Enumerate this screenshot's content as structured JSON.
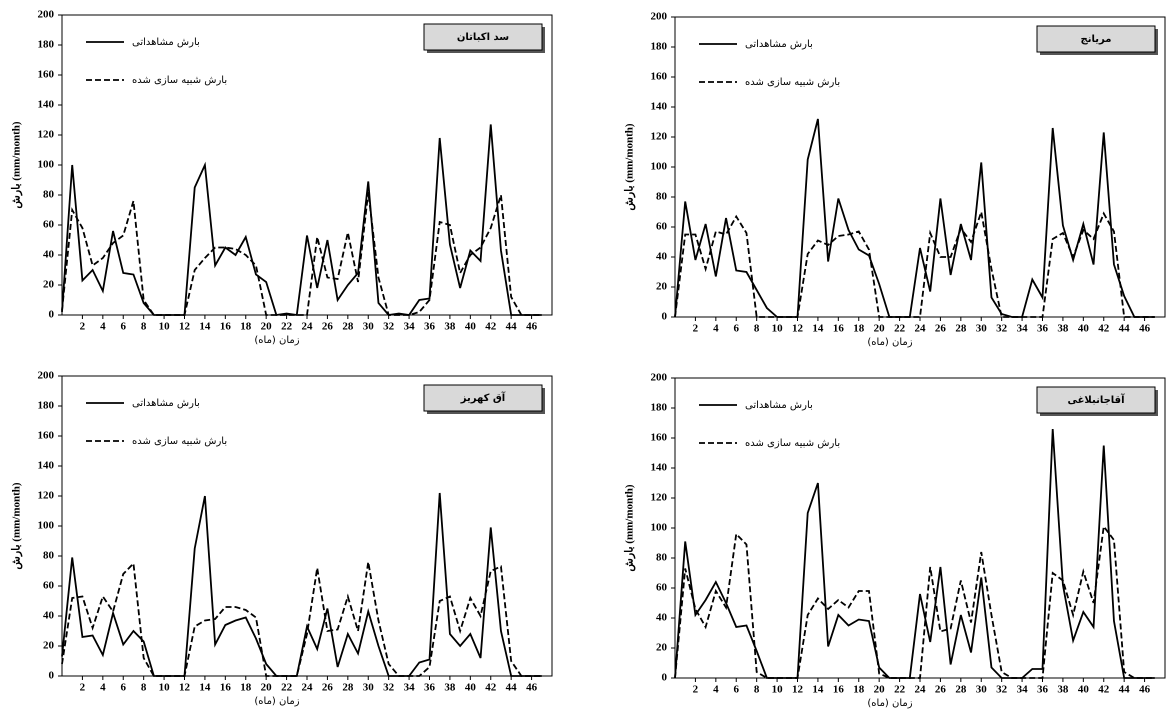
{
  "chart_data": [
    {
      "type": "line",
      "title": "سد اکباتان",
      "xlabel": "زمان (ماه)",
      "ylabel": "بارش (mm/month)",
      "legend": "upper left",
      "x": [
        0,
        1,
        2,
        3,
        4,
        5,
        6,
        7,
        8,
        9,
        10,
        11,
        12,
        13,
        14,
        15,
        16,
        17,
        18,
        19,
        20,
        21,
        22,
        23,
        24,
        25,
        26,
        27,
        28,
        29,
        30,
        31,
        32,
        33,
        34,
        35,
        36,
        37,
        38,
        39,
        40,
        41,
        42,
        43,
        44,
        45,
        46,
        47
      ],
      "xlim": [
        0,
        48
      ],
      "xticks": [
        2,
        4,
        6,
        8,
        10,
        12,
        14,
        16,
        18,
        20,
        22,
        24,
        26,
        28,
        30,
        32,
        34,
        36,
        38,
        40,
        42,
        44,
        46
      ],
      "ylim": [
        0,
        200
      ],
      "yticks": [
        0,
        20,
        40,
        60,
        80,
        100,
        120,
        140,
        160,
        180,
        200
      ],
      "series": [
        {
          "name": "بارش مشاهداتی",
          "color": "#000000",
          "line_style": "solid",
          "values": [
            2,
            100,
            23,
            30,
            16,
            56,
            28,
            27,
            8,
            0,
            0,
            0,
            0,
            85,
            100,
            33,
            45,
            40,
            52,
            27,
            22,
            0,
            1,
            0,
            53,
            18,
            50,
            10,
            20,
            28,
            89,
            8,
            0,
            1,
            0,
            10,
            11,
            118,
            47,
            18,
            43,
            36,
            127,
            43,
            0,
            0,
            0,
            0
          ]
        },
        {
          "name": "بارش شبیه سازی شده",
          "color": "#000000",
          "line_style": "dashed",
          "values": [
            3,
            70,
            58,
            33,
            38,
            48,
            53,
            76,
            10,
            0,
            0,
            0,
            0,
            30,
            38,
            45,
            45,
            44,
            40,
            33,
            0,
            0,
            0,
            0,
            0,
            52,
            25,
            24,
            55,
            22,
            82,
            25,
            0,
            0,
            0,
            2,
            10,
            62,
            60,
            28,
            40,
            45,
            58,
            80,
            12,
            0,
            0,
            0
          ]
        }
      ]
    },
    {
      "type": "line",
      "title": "مریانج",
      "xlabel": "زمان (ماه)",
      "ylabel": "بارش (mm/month)",
      "legend": "upper left",
      "x": [
        0,
        1,
        2,
        3,
        4,
        5,
        6,
        7,
        8,
        9,
        10,
        11,
        12,
        13,
        14,
        15,
        16,
        17,
        18,
        19,
        20,
        21,
        22,
        23,
        24,
        25,
        26,
        27,
        28,
        29,
        30,
        31,
        32,
        33,
        34,
        35,
        36,
        37,
        38,
        39,
        40,
        41,
        42,
        43,
        44,
        45,
        46,
        47
      ],
      "xlim": [
        0,
        48
      ],
      "xticks": [
        2,
        4,
        6,
        8,
        10,
        12,
        14,
        16,
        18,
        20,
        22,
        24,
        26,
        28,
        30,
        32,
        34,
        36,
        38,
        40,
        42,
        44,
        46
      ],
      "ylim": [
        0,
        200
      ],
      "yticks": [
        0,
        20,
        40,
        60,
        80,
        100,
        120,
        140,
        160,
        180,
        200
      ],
      "series": [
        {
          "name": "بارش مشاهداتی",
          "color": "#000000",
          "line_style": "solid",
          "values": [
            0,
            77,
            38,
            62,
            27,
            66,
            31,
            30,
            18,
            6,
            0,
            0,
            0,
            105,
            132,
            37,
            79,
            58,
            45,
            41,
            22,
            0,
            0,
            0,
            46,
            17,
            79,
            28,
            62,
            38,
            103,
            13,
            2,
            0,
            0,
            25,
            13,
            126,
            61,
            38,
            62,
            35,
            123,
            35,
            14,
            0,
            0,
            0
          ]
        },
        {
          "name": "بارش شبیه سازی شده",
          "color": "#000000",
          "line_style": "dashed",
          "values": [
            0,
            55,
            55,
            32,
            57,
            55,
            67,
            56,
            0,
            0,
            0,
            0,
            0,
            42,
            51,
            48,
            54,
            55,
            57,
            45,
            0,
            0,
            0,
            0,
            0,
            56,
            40,
            40,
            59,
            50,
            70,
            32,
            0,
            0,
            0,
            0,
            0,
            52,
            56,
            40,
            58,
            52,
            69,
            57,
            0,
            0,
            0,
            0
          ]
        }
      ]
    },
    {
      "type": "line",
      "title": "آق کهریز",
      "xlabel": "زمان (ماه)",
      "ylabel": "بارش (mm/month)",
      "legend": "upper left",
      "x": [
        0,
        1,
        2,
        3,
        4,
        5,
        6,
        7,
        8,
        9,
        10,
        11,
        12,
        13,
        14,
        15,
        16,
        17,
        18,
        19,
        20,
        21,
        22,
        23,
        24,
        25,
        26,
        27,
        28,
        29,
        30,
        31,
        32,
        33,
        34,
        35,
        36,
        37,
        38,
        39,
        40,
        41,
        42,
        43,
        44,
        45,
        46,
        47
      ],
      "xlim": [
        0,
        48
      ],
      "xticks": [
        2,
        4,
        6,
        8,
        10,
        12,
        14,
        16,
        18,
        20,
        22,
        24,
        26,
        28,
        30,
        32,
        34,
        36,
        38,
        40,
        42,
        44,
        46
      ],
      "ylim": [
        0,
        200
      ],
      "yticks": [
        0,
        20,
        40,
        60,
        80,
        100,
        120,
        140,
        160,
        180,
        200
      ],
      "series": [
        {
          "name": "بارش مشاهداتی",
          "color": "#000000",
          "line_style": "solid",
          "values": [
            13,
            79,
            26,
            27,
            14,
            42,
            21,
            30,
            23,
            0,
            0,
            0,
            0,
            85,
            120,
            21,
            34,
            37,
            39,
            25,
            8,
            0,
            0,
            0,
            33,
            18,
            45,
            6,
            28,
            15,
            43,
            20,
            0,
            0,
            0,
            9,
            11,
            122,
            28,
            20,
            28,
            12,
            99,
            30,
            0,
            0,
            0,
            0
          ]
        },
        {
          "name": "بارش شبیه سازی شده",
          "color": "#000000",
          "line_style": "dashed",
          "values": [
            8,
            52,
            53,
            32,
            53,
            43,
            68,
            75,
            12,
            0,
            0,
            0,
            0,
            33,
            37,
            38,
            46,
            46,
            44,
            39,
            0,
            0,
            0,
            0,
            28,
            72,
            30,
            31,
            53,
            30,
            76,
            37,
            8,
            0,
            0,
            0,
            6,
            50,
            53,
            30,
            52,
            40,
            70,
            73,
            10,
            0,
            0,
            0
          ]
        }
      ]
    },
    {
      "type": "line",
      "title": "آقاجانبلاغی",
      "xlabel": "زمان (ماه)",
      "ylabel": "بارش (mm/month)",
      "legend": "upper left",
      "x": [
        0,
        1,
        2,
        3,
        4,
        5,
        6,
        7,
        8,
        9,
        10,
        11,
        12,
        13,
        14,
        15,
        16,
        17,
        18,
        19,
        20,
        21,
        22,
        23,
        24,
        25,
        26,
        27,
        28,
        29,
        30,
        31,
        32,
        33,
        34,
        35,
        36,
        37,
        38,
        39,
        40,
        41,
        42,
        43,
        44,
        45,
        46,
        47
      ],
      "xlim": [
        0,
        48
      ],
      "xticks": [
        2,
        4,
        6,
        8,
        10,
        12,
        14,
        16,
        18,
        20,
        22,
        24,
        26,
        28,
        30,
        32,
        34,
        36,
        38,
        40,
        42,
        44,
        46
      ],
      "ylim": [
        0,
        200
      ],
      "yticks": [
        0,
        20,
        40,
        60,
        80,
        100,
        120,
        140,
        160,
        180,
        200
      ],
      "series": [
        {
          "name": "بارش مشاهداتی",
          "color": "#000000",
          "line_style": "solid",
          "values": [
            0,
            91,
            42,
            52,
            64,
            50,
            34,
            35,
            18,
            0,
            0,
            0,
            0,
            110,
            130,
            21,
            42,
            35,
            39,
            38,
            7,
            0,
            0,
            0,
            56,
            24,
            74,
            9,
            42,
            17,
            67,
            7,
            0,
            0,
            0,
            6,
            6,
            166,
            62,
            25,
            44,
            34,
            155,
            38,
            0,
            0,
            0,
            0
          ]
        },
        {
          "name": "بارش شبیه سازی شده",
          "color": "#000000",
          "line_style": "dashed",
          "values": [
            0,
            73,
            46,
            34,
            58,
            47,
            96,
            89,
            4,
            0,
            0,
            0,
            0,
            42,
            53,
            46,
            52,
            47,
            58,
            58,
            3,
            0,
            0,
            0,
            0,
            74,
            31,
            33,
            65,
            37,
            84,
            42,
            4,
            0,
            0,
            0,
            0,
            70,
            65,
            42,
            71,
            50,
            101,
            92,
            4,
            0,
            0,
            0
          ]
        }
      ]
    }
  ]
}
